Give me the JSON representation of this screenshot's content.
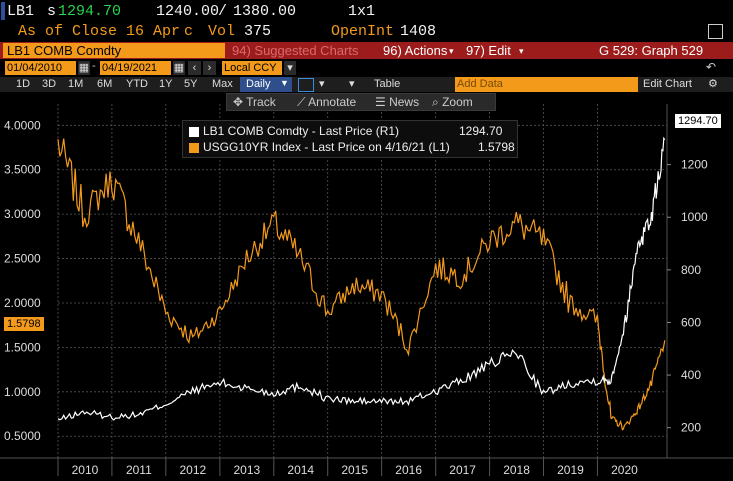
{
  "header": {
    "ticker": "LB1",
    "price_prefix": "s",
    "price": "1294.70",
    "bid_ask_1": "1240.00",
    "bid_ask_sep": "/",
    "bid_ask_2": "1380.00",
    "size": "1x1",
    "as_of": "As of Close 16 Apr",
    "c_label": "c",
    "vol_label": "Vol",
    "vol_value": "375",
    "openint_label": "OpenInt",
    "openint_value": "1408"
  },
  "menubar": {
    "security": "LB1 COMB Comdty",
    "suggested": "94) Suggested Charts",
    "actions": "96) Actions",
    "edit": "97) Edit",
    "graph": "G 529: Graph 529"
  },
  "controls": {
    "start_date": "01/04/2010",
    "end_date": "04/19/2021",
    "currency": "Local CCY",
    "table": "Table",
    "add_data_placeholder": "Add Data",
    "edit_chart": "Edit Chart"
  },
  "range_buttons": [
    "1D",
    "3D",
    "1M",
    "6M",
    "YTD",
    "1Y",
    "5Y",
    "Max"
  ],
  "period": "Daily",
  "toolbar": {
    "track": "Track",
    "annotate": "Annotate",
    "news": "News",
    "zoom": "Zoom"
  },
  "legend": {
    "row1_name": "LB1 COMB Comdty - Last Price (R1)",
    "row1_value": "1294.70",
    "row2_name": "USGG10YR Index - Last Price on 4/16/21 (L1)",
    "row2_value": "1.5798"
  },
  "tags": {
    "left": "1.5798",
    "right": "1294.70"
  },
  "colors": {
    "amber": "#f39a1b",
    "menubar": "#9c1c1c",
    "series_white": "#ffffff",
    "series_orange": "#f39a1b"
  },
  "chart_data": {
    "type": "line",
    "x": [
      "2010-01",
      "2010-07",
      "2011-01",
      "2011-07",
      "2012-01",
      "2012-07",
      "2013-01",
      "2013-07",
      "2014-01",
      "2014-07",
      "2015-01",
      "2015-07",
      "2016-01",
      "2016-07",
      "2017-01",
      "2017-07",
      "2018-01",
      "2018-07",
      "2019-01",
      "2019-07",
      "2020-01",
      "2020-04",
      "2020-07",
      "2020-10",
      "2021-01",
      "2021-04"
    ],
    "series": [
      {
        "name": "USGG10YR Index - Last Price on 4/16/21 (L1)",
        "axis": "left",
        "color": "#f39a1b",
        "values": [
          3.8,
          3.0,
          3.4,
          2.7,
          1.9,
          1.6,
          1.9,
          2.5,
          2.9,
          2.5,
          1.9,
          2.2,
          2.1,
          1.5,
          2.4,
          2.3,
          2.7,
          2.9,
          2.7,
          2.0,
          1.8,
          0.7,
          0.6,
          0.8,
          1.1,
          1.58
        ]
      },
      {
        "name": "LB1 COMB Comdty - Last Price (R1)",
        "axis": "right",
        "color": "#ffffff",
        "values": [
          230,
          260,
          240,
          250,
          290,
          340,
          370,
          350,
          330,
          360,
          310,
          300,
          300,
          300,
          340,
          380,
          440,
          490,
          330,
          370,
          380,
          380,
          580,
          900,
          1000,
          1294.7
        ]
      }
    ],
    "xticks": [
      "2010",
      "2011",
      "2012",
      "2013",
      "2014",
      "2015",
      "2016",
      "2017",
      "2018",
      "2019",
      "2020"
    ],
    "yleft": {
      "ticks": [
        "0.5000",
        "1.0000",
        "1.5000",
        "2.0000",
        "2.5000",
        "3.0000",
        "3.5000",
        "4.0000"
      ],
      "min": 0.3,
      "max": 4.15
    },
    "yright": {
      "ticks": [
        "200",
        "400",
        "600",
        "800",
        "1000",
        "1200"
      ],
      "min": 100,
      "max": 1400
    },
    "grid": true,
    "legend": "top-center"
  }
}
